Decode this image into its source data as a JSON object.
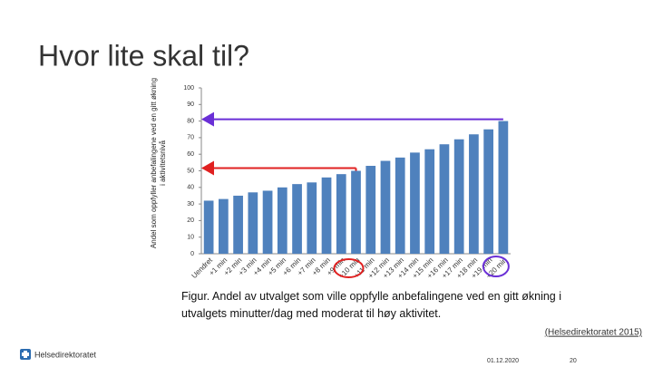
{
  "header": {
    "title": "Hvor lite skal til?"
  },
  "chart_data": {
    "type": "bar",
    "y_label": "Andel som oppfyller anbefalingene ved en gitt økning i aktivitetsnivå",
    "categories": [
      "Uendret",
      "+1 min",
      "+2 min",
      "+3 min",
      "+4 min",
      "+5 min",
      "+6 min",
      "+7 min",
      "+8 min",
      "+9 min",
      "+10 min",
      "+11 min",
      "+12 min",
      "+13 min",
      "+14 min",
      "+15 min",
      "+16 min",
      "+17 min",
      "+18 min",
      "+19 min",
      "+20 min"
    ],
    "values": [
      32,
      33,
      35,
      37,
      38,
      40,
      42,
      43,
      46,
      48,
      50,
      53,
      56,
      58,
      61,
      63,
      66,
      69,
      72,
      75,
      80
    ],
    "color": "#4f81bd",
    "ylim": [
      0,
      100
    ],
    "yticks": [
      0,
      10,
      20,
      30,
      40,
      50,
      60,
      70,
      80,
      90,
      100
    ]
  },
  "caption": "Figur. Andel av utvalget som ville oppfylle anbefalingene ved en gitt økning i utvalgets minutter/dag med moderat til høy aktivitet.",
  "source": "(Helsedirektoratet 2015)",
  "footer": {
    "logo": "Helsedirektoratet",
    "date": "01.12.2020",
    "page": "20"
  }
}
